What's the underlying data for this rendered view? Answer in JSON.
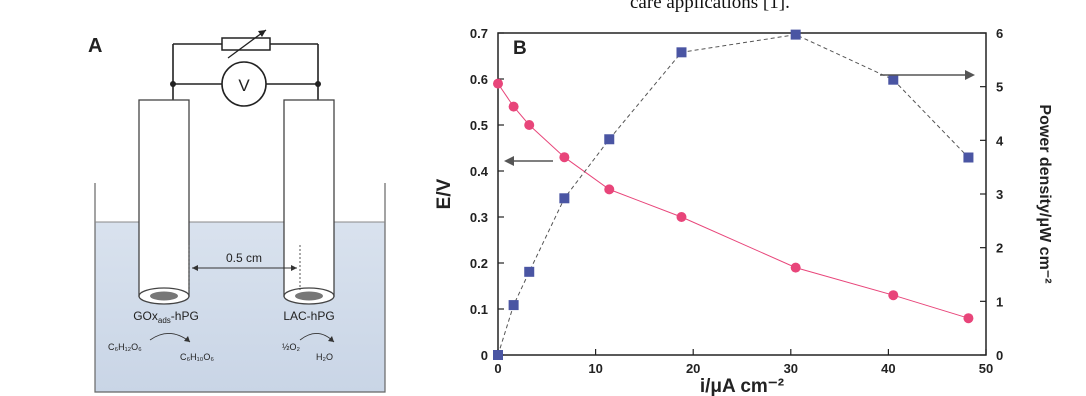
{
  "caption_fragment": "care applications [1].",
  "panel_a": {
    "label": "A",
    "voltmeter": "V",
    "distance": "0.5 cm",
    "anode_label_main": "GOx",
    "anode_label_sub": "ads",
    "anode_label_end": "-hPG",
    "cathode_label": "LAC-hPG",
    "reaction_left_in": "C₆H₁₂O₆",
    "reaction_left_out": "C₆H₁₀O₆",
    "reaction_right_in": "½O₂",
    "reaction_right_out": "H₂O"
  },
  "chart_data": {
    "type": "scatter",
    "panel_label": "B",
    "xlabel": "i/μA cm⁻²",
    "ylabel": "E/V",
    "y2label": "Power density/μW cm⁻²",
    "xlim": [
      0,
      50
    ],
    "ylim": [
      0,
      0.7
    ],
    "y2lim": [
      0,
      6
    ],
    "xticks": [
      0,
      10,
      20,
      30,
      40,
      50
    ],
    "yticks": [
      0,
      0.1,
      0.2,
      0.3,
      0.4,
      0.5,
      0.6,
      0.7
    ],
    "y2ticks": [
      0,
      1,
      2,
      3,
      4,
      5,
      6
    ],
    "grid": false,
    "series": [
      {
        "axis": "left",
        "color": "#e8457a",
        "marker": "circle",
        "x": [
          0,
          1.6,
          3.2,
          6.8,
          11.4,
          18.8,
          30.5,
          40.5,
          48.2
        ],
        "y": [
          0.59,
          0.54,
          0.5,
          0.43,
          0.36,
          0.3,
          0.19,
          0.13,
          0.08
        ]
      },
      {
        "axis": "right",
        "color": "#4a55a3",
        "marker": "square",
        "x": [
          0,
          1.6,
          3.2,
          6.8,
          11.4,
          18.8,
          30.5,
          40.5,
          48.2
        ],
        "y": [
          0,
          0.93,
          1.55,
          2.92,
          4.02,
          5.64,
          5.97,
          5.13,
          3.68
        ]
      }
    ]
  }
}
